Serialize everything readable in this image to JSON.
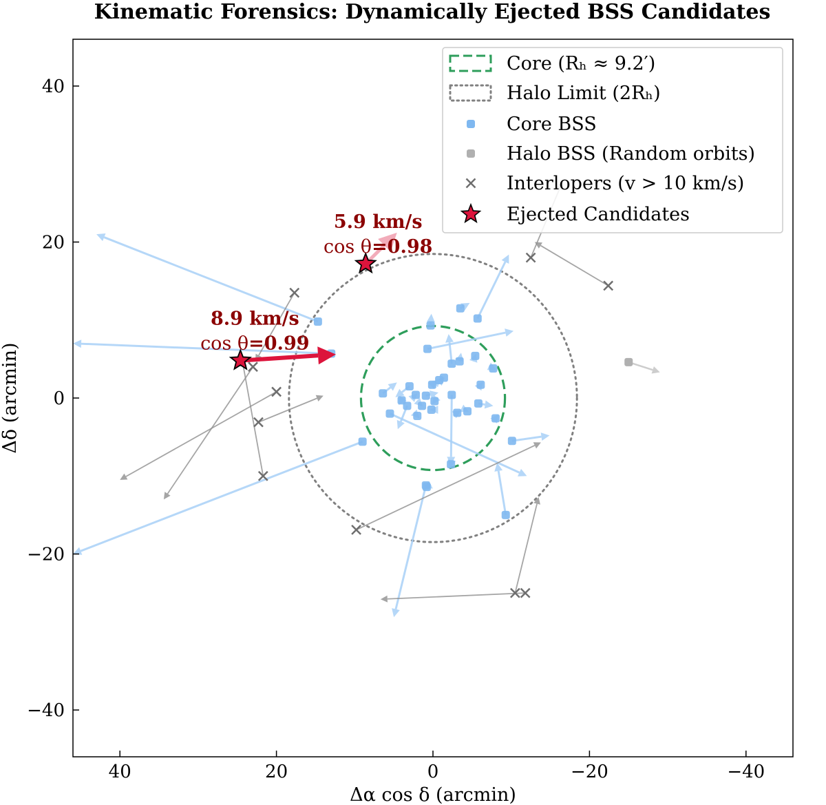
{
  "chart_data": {
    "type": "scatter",
    "title": "Kinematic Forensics: Dynamically Ejected BSS Candidates",
    "xlabel": "Δα cos δ (arcmin)",
    "ylabel": "Δδ (arcmin)",
    "xlim": [
      46,
      -46
    ],
    "ylim": [
      -46,
      46
    ],
    "xticks": [
      40,
      20,
      0,
      -20,
      -40
    ],
    "xtick_labels": [
      "40",
      "20",
      "0",
      "−20",
      "−40"
    ],
    "yticks": [
      40,
      20,
      0,
      -20,
      -40
    ],
    "ytick_labels": [
      "40",
      "20",
      "0",
      "−20",
      "−40"
    ],
    "grid": false,
    "legend_position": "top-right",
    "colors": {
      "core": "#2e9e5b",
      "halo_limit": "#808080",
      "core_bss": "#7fb8f0",
      "core_bss_arrow": "#a9d1f7",
      "halo_bss": "#b0b0b0",
      "interloper": "#6e6e6e",
      "ejected": "#dc143c",
      "annotation": "#8b0000"
    },
    "circles": [
      {
        "name": "Core",
        "radius": 9.2,
        "style": "dashed"
      },
      {
        "name": "Halo Limit",
        "radius": 18.4,
        "style": "dotted"
      }
    ],
    "legend": [
      {
        "key": "core",
        "label": "Core (Rₕ ≈ 9.2′)"
      },
      {
        "key": "halo",
        "label": "Halo Limit (2Rₕ)"
      },
      {
        "key": "core_bss",
        "label": "Core BSS"
      },
      {
        "key": "halo_bss",
        "label": "Halo BSS (Random orbits)"
      },
      {
        "key": "interlopers",
        "label": "Interlopers (v > 10 km/s)"
      },
      {
        "key": "ejected",
        "label": "Ejected Candidates"
      }
    ],
    "series": [
      {
        "name": "Core BSS",
        "marker": "circle",
        "points": [
          [
            0.3,
            9.3,
            0.2,
            10.8
          ],
          [
            -5.7,
            10.2,
            -9.7,
            18.4
          ],
          [
            -3.5,
            11.5,
            -4.7,
            12.2
          ],
          [
            0.7,
            6.3,
            -10.3,
            8.6
          ],
          [
            -5.4,
            5.4,
            -5.5,
            5.7
          ],
          [
            -3.4,
            4.7,
            -3.6,
            5.8
          ],
          [
            -2.4,
            4.4,
            -2.0,
            8.2
          ],
          [
            -1.4,
            2.6,
            -1.5,
            2.7
          ],
          [
            -0.8,
            2.3,
            -1.0,
            2.5
          ],
          [
            0.1,
            1.7,
            -0.5,
            2.3
          ],
          [
            -2.4,
            0.4,
            -2.3,
            -8.6
          ],
          [
            0.9,
            0.3,
            -0.7,
            0.7
          ],
          [
            -0.2,
            -0.4,
            0.1,
            -0.8
          ],
          [
            2.2,
            0.4,
            2.0,
            0.6
          ],
          [
            3.0,
            1.5,
            4.8,
            0.1
          ],
          [
            4.0,
            -0.3,
            4.4,
            -0.9
          ],
          [
            6.4,
            0.6,
            4.6,
            2.0
          ],
          [
            1.4,
            -1.0,
            1.3,
            -1.1
          ],
          [
            2.0,
            -2.3,
            1.7,
            -2.6
          ],
          [
            3.3,
            -1.0,
            4.5,
            -4.0
          ],
          [
            0.2,
            -1.5,
            0.4,
            -1.5
          ],
          [
            -3.1,
            -1.9,
            -3.6,
            -1.6
          ],
          [
            -4.4,
            -1.7,
            -4.6,
            -1.8
          ],
          [
            -5.8,
            -0.7,
            -7.7,
            -1.0
          ],
          [
            -6.1,
            1.7,
            -6.4,
            2.1
          ],
          [
            -7.7,
            3.8,
            -8.1,
            3.6
          ],
          [
            -8.0,
            -2.6,
            -8.4,
            -2.1
          ],
          [
            -10.1,
            -5.5,
            -14.9,
            -4.8
          ],
          [
            -9.3,
            -15.0,
            -8.2,
            -8.3
          ],
          [
            0.9,
            -11.2,
            5.0,
            -28.1
          ],
          [
            0.8,
            -11.4,
            1.2,
            -11.6
          ],
          [
            9.0,
            -5.6,
            46.0,
            -20.0
          ],
          [
            13.0,
            5.7,
            46.0,
            7.0
          ],
          [
            14.7,
            9.8,
            43.0,
            21.0
          ],
          [
            5.5,
            -2.0,
            -12.0,
            -10.0
          ],
          [
            -2.3,
            -8.5,
            -2.2,
            -9.0
          ]
        ]
      },
      {
        "name": "Halo BSS (Random orbits)",
        "marker": "circle",
        "points": [
          [
            -25.0,
            4.6,
            -29.0,
            3.3
          ]
        ]
      },
      {
        "name": "Interlopers (v > 10 km/s)",
        "marker": "x",
        "points": [
          [
            17.7,
            13.5,
            22.7,
            4.7
          ],
          [
            22.3,
            -3.1,
            14.0,
            0.3
          ],
          [
            21.7,
            -10.0,
            24.4,
            5.0
          ],
          [
            9.8,
            -16.9,
            -13.8,
            -5.7
          ],
          [
            -12.5,
            18.0,
            -16.5,
            27.6
          ],
          [
            -22.4,
            14.4,
            -13.0,
            20.0
          ],
          [
            -10.5,
            -25.0,
            -13.5,
            -12.7
          ],
          [
            -11.8,
            -25.0,
            6.7,
            -25.8
          ],
          [
            20.0,
            0.8,
            40.0,
            -10.5
          ],
          [
            23.0,
            4.0,
            34.4,
            -13.0
          ]
        ]
      }
    ],
    "ejected_candidates": [
      {
        "x": 24.6,
        "y": 4.8,
        "dx": 12.4,
        "dy": 5.6,
        "label_speed": "8.9 km/s",
        "label_cos_prefix": "cos θ",
        "label_cos_value": "=0.99"
      },
      {
        "x": 8.6,
        "y": 17.2,
        "dx": 4.6,
        "dy": 21.2,
        "label_speed": "5.9 km/s",
        "label_cos_prefix": "cos θ",
        "label_cos_value": "=0.98"
      }
    ]
  }
}
